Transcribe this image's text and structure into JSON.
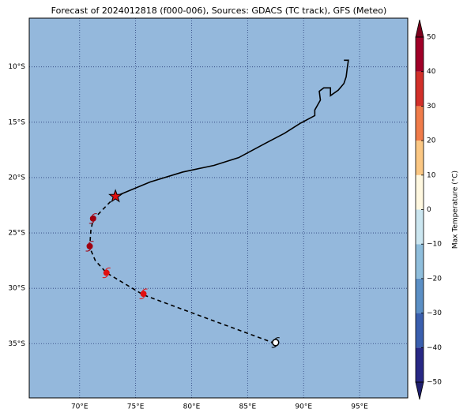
{
  "chart_data": {
    "type": "map",
    "title": "Forecast of 2024012818 (f000-006), Sources: GDACS (TC track), GFS (Meteo)",
    "xlim": [
      65.5,
      99.3
    ],
    "ylim": [
      -39.9,
      -5.6
    ],
    "xticks": [
      {
        "value": 70,
        "label": "70°E"
      },
      {
        "value": 75,
        "label": "75°E"
      },
      {
        "value": 80,
        "label": "80°E"
      },
      {
        "value": 85,
        "label": "85°E"
      },
      {
        "value": 90,
        "label": "90°E"
      },
      {
        "value": 95,
        "label": "95°E"
      }
    ],
    "yticks": [
      {
        "value": -10,
        "label": "10°S"
      },
      {
        "value": -15,
        "label": "15°S"
      },
      {
        "value": -20,
        "label": "20°S"
      },
      {
        "value": -25,
        "label": "25°S"
      },
      {
        "value": -30,
        "label": "30°S"
      },
      {
        "value": -35,
        "label": "35°S"
      }
    ],
    "grid": true,
    "background": "#94b8dc",
    "past_track": {
      "x": [
        93.6,
        94.0,
        93.9,
        93.8,
        93.6,
        93.1,
        92.4,
        92.4,
        91.8,
        91.4,
        91.5,
        91.0,
        91.0,
        89.7,
        88.3,
        86.6,
        84.2,
        82.0,
        79.2,
        76.3,
        73.2
      ],
      "values": [
        -9.4,
        -9.4,
        -10.1,
        -10.9,
        -11.5,
        -12.1,
        -12.6,
        -11.9,
        -11.9,
        -12.2,
        -13.0,
        -13.9,
        -14.4,
        -15.1,
        -16.0,
        -16.9,
        -18.2,
        -18.9,
        -19.5,
        -20.4,
        -21.7
      ]
    },
    "forecast_track": {
      "x": [
        73.2,
        71.2,
        71.0,
        70.9,
        71.4,
        72.4,
        75.7,
        87.5
      ],
      "values": [
        -21.7,
        -23.8,
        -24.8,
        -26.3,
        -27.5,
        -28.6,
        -30.6,
        -35.0
      ]
    },
    "current_position": {
      "x": 73.2,
      "value": -21.7,
      "color": "#e01010"
    },
    "storms": {
      "x": [
        71.2,
        70.9,
        72.4,
        75.7,
        87.5
      ],
      "values": [
        -23.7,
        -26.2,
        -28.6,
        -30.5,
        -34.9
      ],
      "colors": [
        "#a00010",
        "#a00010",
        "#e01010",
        "#e01010",
        "#ffffff"
      ]
    },
    "colorbar": {
      "label": "Max Temperature (°C)",
      "lim": [
        -50,
        50
      ],
      "ticks": [
        50,
        40,
        30,
        20,
        10,
        0,
        {
          "value": -10,
          "label": "−10"
        },
        {
          "value": -20,
          "label": "−20"
        },
        {
          "value": -30,
          "label": "−30"
        },
        {
          "value": -40,
          "label": "−40"
        },
        {
          "value": -50,
          "label": "−50"
        }
      ],
      "colors": [
        "#282885",
        "#3a5fae",
        "#5b8fc5",
        "#8fbedc",
        "#cbe6f0",
        "#fff8e0",
        "#fbc783",
        "#f07c4a",
        "#d2302a",
        "#a00028"
      ],
      "under": "#1f1f6e",
      "over": "#7a001c"
    }
  }
}
